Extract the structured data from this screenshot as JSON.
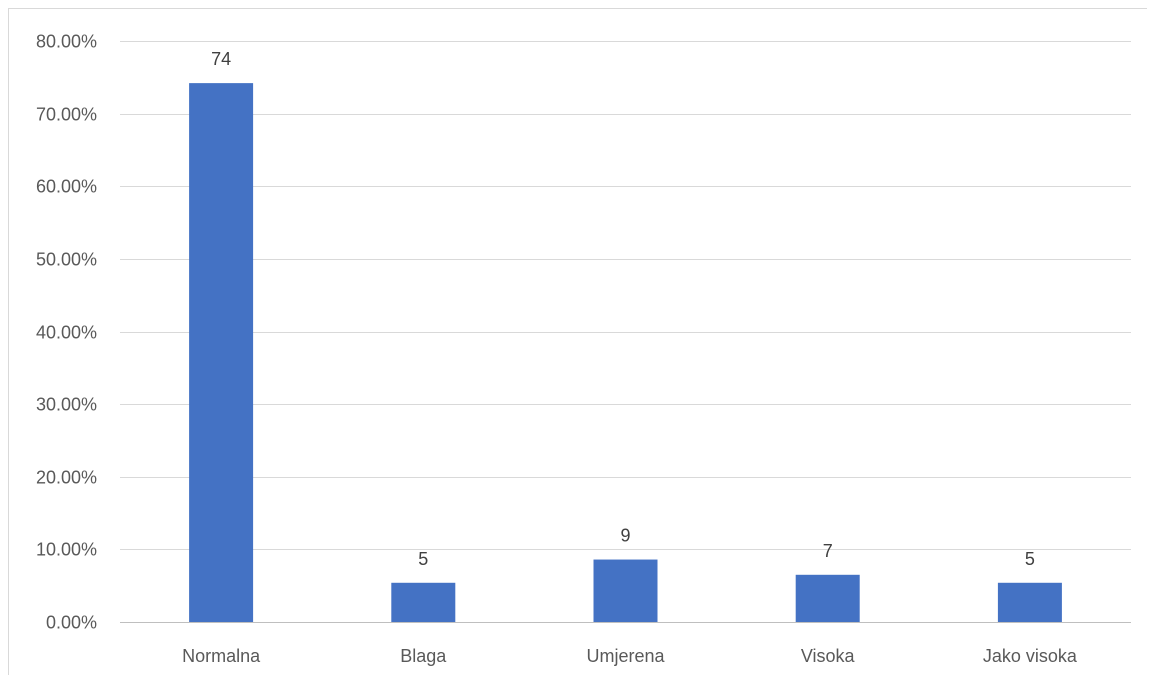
{
  "chart_data": {
    "type": "bar",
    "categories": [
      "Normalna",
      "Blaga",
      "Umjerena",
      "Visoka",
      "Jako visoka"
    ],
    "series": [
      {
        "values": [
          74.2,
          5.4,
          8.6,
          6.5,
          5.4
        ],
        "data_labels": [
          "74",
          "5",
          "9",
          "7",
          "5"
        ]
      }
    ],
    "ylim": [
      0,
      80
    ],
    "y_ticks": [
      0,
      10,
      20,
      30,
      40,
      50,
      60,
      70,
      80
    ],
    "y_tick_labels": [
      "0.00%",
      "10.00%",
      "20.00%",
      "30.00%",
      "40.00%",
      "50.00%",
      "60.00%",
      "70.00%",
      "80.00%"
    ],
    "grid": true,
    "bar_color": "#4472c4"
  }
}
